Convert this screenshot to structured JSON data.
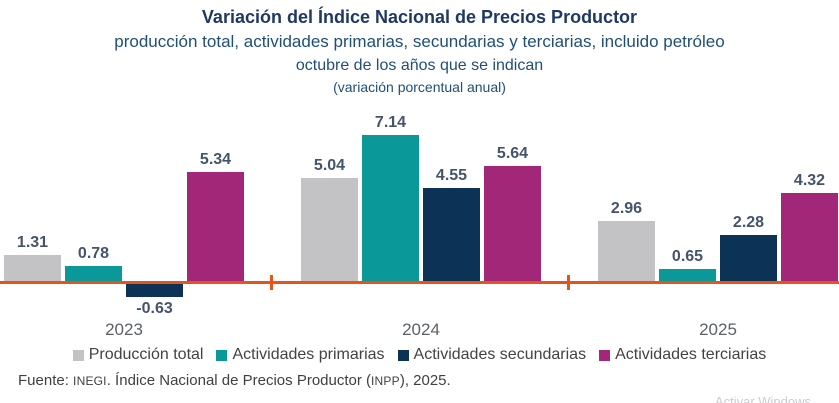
{
  "header": {
    "title": "Variación del Índice Nacional de Precios Productor",
    "subtitle1": "producción total, actividades primarias, secundarias y terciarias, incluido petróleo",
    "subtitle2": "octubre de los años que se indican",
    "subtitle3": "(variación porcentual anual)"
  },
  "chart_data": {
    "type": "bar",
    "title": "Variación del Índice Nacional de Precios Productor",
    "categories": [
      "2023",
      "2024",
      "2025"
    ],
    "series": [
      {
        "name": "Producción total",
        "color": "#C3C3C5",
        "values": [
          1.31,
          5.04,
          2.96
        ]
      },
      {
        "name": "Actividades primarias",
        "color": "#0A9899",
        "values": [
          0.78,
          7.14,
          0.65
        ]
      },
      {
        "name": "Actividades secundarias",
        "color": "#0C3355",
        "values": [
          -0.63,
          4.55,
          2.28
        ]
      },
      {
        "name": "Actividades terciarias",
        "color": "#A22778",
        "values": [
          5.34,
          5.64,
          4.32
        ]
      }
    ],
    "xlabel": "",
    "ylabel": "",
    "ylim": [
      -1,
      8
    ],
    "grid": false,
    "legend_position": "bottom",
    "data_labels": true,
    "axis_color": "#E6541A",
    "value_label_color": "#44546A",
    "category_label_color": "#5D6166"
  },
  "footer": {
    "source_prefix": "Fuente: ",
    "source_inegi": "INEGI",
    "source_mid": ". Índice Nacional de Precios Productor (",
    "source_inpp": "INPP",
    "source_suffix": "), 2025."
  },
  "watermark": "Activar Windows"
}
